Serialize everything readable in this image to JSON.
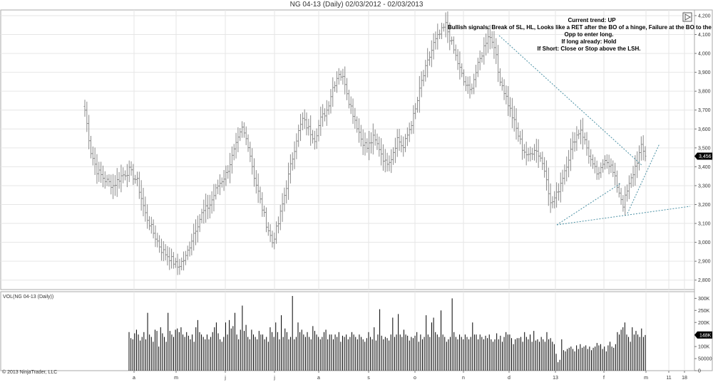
{
  "window": {
    "title": "NG 04-13 (Daily)  02/03/2012 - 02/03/2013"
  },
  "annotations": [
    "Current trend: UP",
    "Bullish signals: Break of SL, HL, Looks like a RET after the BO of a hinge, Failure at the BO to the dow",
    "Opp to enter long.",
    "If long already: Hold",
    "If Short: Close or Stop above the LSH."
  ],
  "volume_panel_label": "VOL(NG 04-13 (Daily))",
  "copyright": "© 2013 NinjaTrader, LLC",
  "colors": {
    "bars": "#8a8a8a",
    "volume": "#000000",
    "trendline": "#4a90a4",
    "grid": "#e6e6e6",
    "marker": "#000000"
  },
  "chart_data": [
    {
      "type": "ohlc",
      "name": "price",
      "y_ticks": [
        "4,200",
        "4,100",
        "4,000",
        "3,900",
        "3,800",
        "3,700",
        "3,600",
        "3,500",
        "3,400",
        "3,300",
        "3,200",
        "3,100",
        "3,000",
        "2,900",
        "2,800"
      ],
      "ylim": [
        2750,
        4230
      ],
      "current_value_label": "3,456",
      "x_tick_labels": [
        "a",
        "m",
        "j",
        "j",
        "a",
        "s",
        "o",
        "n",
        "d",
        "13",
        "f",
        "m",
        "11",
        "18"
      ],
      "close_path": [
        [
          0,
          3700
        ],
        [
          3,
          3480
        ],
        [
          6,
          3380
        ],
        [
          10,
          3330
        ],
        [
          14,
          3300
        ],
        [
          18,
          3350
        ],
        [
          22,
          3380
        ],
        [
          26,
          3320
        ],
        [
          30,
          3150
        ],
        [
          34,
          3050
        ],
        [
          38,
          2960
        ],
        [
          42,
          2920
        ],
        [
          46,
          2870
        ],
        [
          50,
          2920
        ],
        [
          54,
          3050
        ],
        [
          58,
          3150
        ],
        [
          62,
          3200
        ],
        [
          66,
          3300
        ],
        [
          70,
          3360
        ],
        [
          74,
          3480
        ],
        [
          78,
          3600
        ],
        [
          81,
          3520
        ],
        [
          84,
          3350
        ],
        [
          87,
          3220
        ],
        [
          90,
          3100
        ],
        [
          93,
          3000
        ],
        [
          96,
          3100
        ],
        [
          99,
          3250
        ],
        [
          102,
          3400
        ],
        [
          105,
          3550
        ],
        [
          108,
          3650
        ],
        [
          111,
          3600
        ],
        [
          114,
          3550
        ],
        [
          117,
          3650
        ],
        [
          120,
          3700
        ],
        [
          123,
          3820
        ],
        [
          126,
          3900
        ],
        [
          129,
          3850
        ],
        [
          131,
          3750
        ],
        [
          134,
          3650
        ],
        [
          137,
          3550
        ],
        [
          140,
          3500
        ],
        [
          143,
          3550
        ],
        [
          146,
          3500
        ],
        [
          149,
          3420
        ],
        [
          152,
          3450
        ],
        [
          155,
          3550
        ],
        [
          158,
          3500
        ],
        [
          161,
          3600
        ],
        [
          164,
          3700
        ],
        [
          167,
          3850
        ],
        [
          170,
          3950
        ],
        [
          173,
          4050
        ],
        [
          176,
          4100
        ],
        [
          179,
          4150
        ],
        [
          182,
          4050
        ],
        [
          185,
          3950
        ],
        [
          188,
          3850
        ],
        [
          191,
          3800
        ],
        [
          194,
          3900
        ],
        [
          197,
          4000
        ],
        [
          200,
          4100
        ],
        [
          203,
          4050
        ],
        [
          205,
          3900
        ],
        [
          208,
          3800
        ],
        [
          211,
          3700
        ],
        [
          214,
          3600
        ],
        [
          217,
          3500
        ],
        [
          220,
          3450
        ],
        [
          223,
          3500
        ],
        [
          226,
          3450
        ],
        [
          229,
          3350
        ],
        [
          231,
          3200
        ],
        [
          234,
          3250
        ],
        [
          237,
          3350
        ],
        [
          240,
          3450
        ],
        [
          243,
          3550
        ],
        [
          246,
          3600
        ],
        [
          249,
          3500
        ],
        [
          252,
          3400
        ],
        [
          255,
          3350
        ],
        [
          258,
          3450
        ],
        [
          261,
          3400
        ],
        [
          264,
          3300
        ],
        [
          267,
          3200
        ],
        [
          270,
          3300
        ],
        [
          273,
          3400
        ],
        [
          276,
          3500
        ],
        [
          278,
          3456
        ]
      ]
    },
    {
      "type": "bar",
      "name": "volume",
      "y_ticks": [
        "300K",
        "250K",
        "200K",
        "150K",
        "100K",
        "50000",
        "0"
      ],
      "ylim": [
        0,
        310000
      ],
      "current_value_label": "148K",
      "values": [
        160000,
        135000,
        130000,
        155000,
        170000,
        150000,
        125000,
        140000,
        160000,
        130000,
        240000,
        150000,
        140000,
        120000,
        170000,
        165000,
        100000,
        180000,
        155000,
        140000,
        120000,
        240000,
        165000,
        150000,
        140000,
        170000,
        175000,
        160000,
        180000,
        150000,
        140000,
        160000,
        145000,
        130000,
        150000,
        120000,
        180000,
        210000,
        160000,
        150000,
        140000,
        130000,
        150000,
        130000,
        140000,
        160000,
        180000,
        200000,
        155000,
        130000,
        120000,
        140000,
        200000,
        150000,
        210000,
        175000,
        185000,
        240000,
        150000,
        130000,
        170000,
        270000,
        165000,
        190000,
        140000,
        130000,
        170000,
        150000,
        140000,
        130000,
        165000,
        150000,
        150000,
        130000,
        140000,
        120000,
        180000,
        160000,
        140000,
        200000,
        160000,
        130000,
        230000,
        140000,
        175000,
        160000,
        130000,
        140000,
        310000,
        130000,
        140000,
        200000,
        160000,
        170000,
        150000,
        140000,
        160000,
        140000,
        130000,
        185000,
        165000,
        150000,
        140000,
        130000,
        140000,
        160000,
        170000,
        130000,
        150000,
        150000,
        130000,
        150000,
        140000,
        160000,
        120000,
        145000,
        140000,
        150000,
        130000,
        140000,
        160000,
        150000,
        140000,
        130000,
        150000,
        140000,
        130000,
        120000,
        135000,
        160000,
        140000,
        130000,
        180000,
        125000,
        150000,
        255000,
        145000,
        130000,
        140000,
        135000,
        125000,
        150000,
        220000,
        140000,
        150000,
        235000,
        150000,
        140000,
        170000,
        150000,
        145000,
        125000,
        140000,
        135000,
        145000,
        160000,
        120000,
        150000,
        130000,
        140000,
        230000,
        150000,
        140000,
        200000,
        220000,
        160000,
        150000,
        140000,
        250000,
        150000,
        140000,
        120000,
        130000,
        140000,
        300000,
        160000,
        140000,
        130000,
        150000,
        140000,
        130000,
        150000,
        140000,
        130000,
        140000,
        200000,
        150000,
        150000,
        130000,
        150000,
        140000,
        130000,
        145000,
        135000,
        150000,
        130000,
        120000,
        130000,
        155000,
        130000,
        145000,
        120000,
        140000,
        160000,
        150000,
        150000,
        135000,
        110000,
        130000,
        135000,
        135000,
        140000,
        120000,
        160000,
        140000,
        130000,
        150000,
        120000,
        165000,
        125000,
        130000,
        120000,
        140000,
        130000,
        120000,
        160000,
        130000,
        135000,
        120000,
        110000,
        70000,
        35000,
        45000,
        130000,
        85000,
        80000,
        90000,
        95000,
        100000,
        90000,
        80000,
        105000,
        90000,
        110000,
        95000,
        100000,
        105000,
        90000,
        100000,
        85000,
        95000,
        100000,
        115000,
        105000,
        110000,
        90000,
        100000,
        80000,
        105000,
        120000,
        100000,
        95000,
        110000,
        160000,
        150000,
        170000,
        180000,
        200000,
        150000,
        140000,
        120000,
        180000,
        150000,
        165000,
        150000,
        140000,
        175000,
        140000,
        148000
      ]
    }
  ]
}
